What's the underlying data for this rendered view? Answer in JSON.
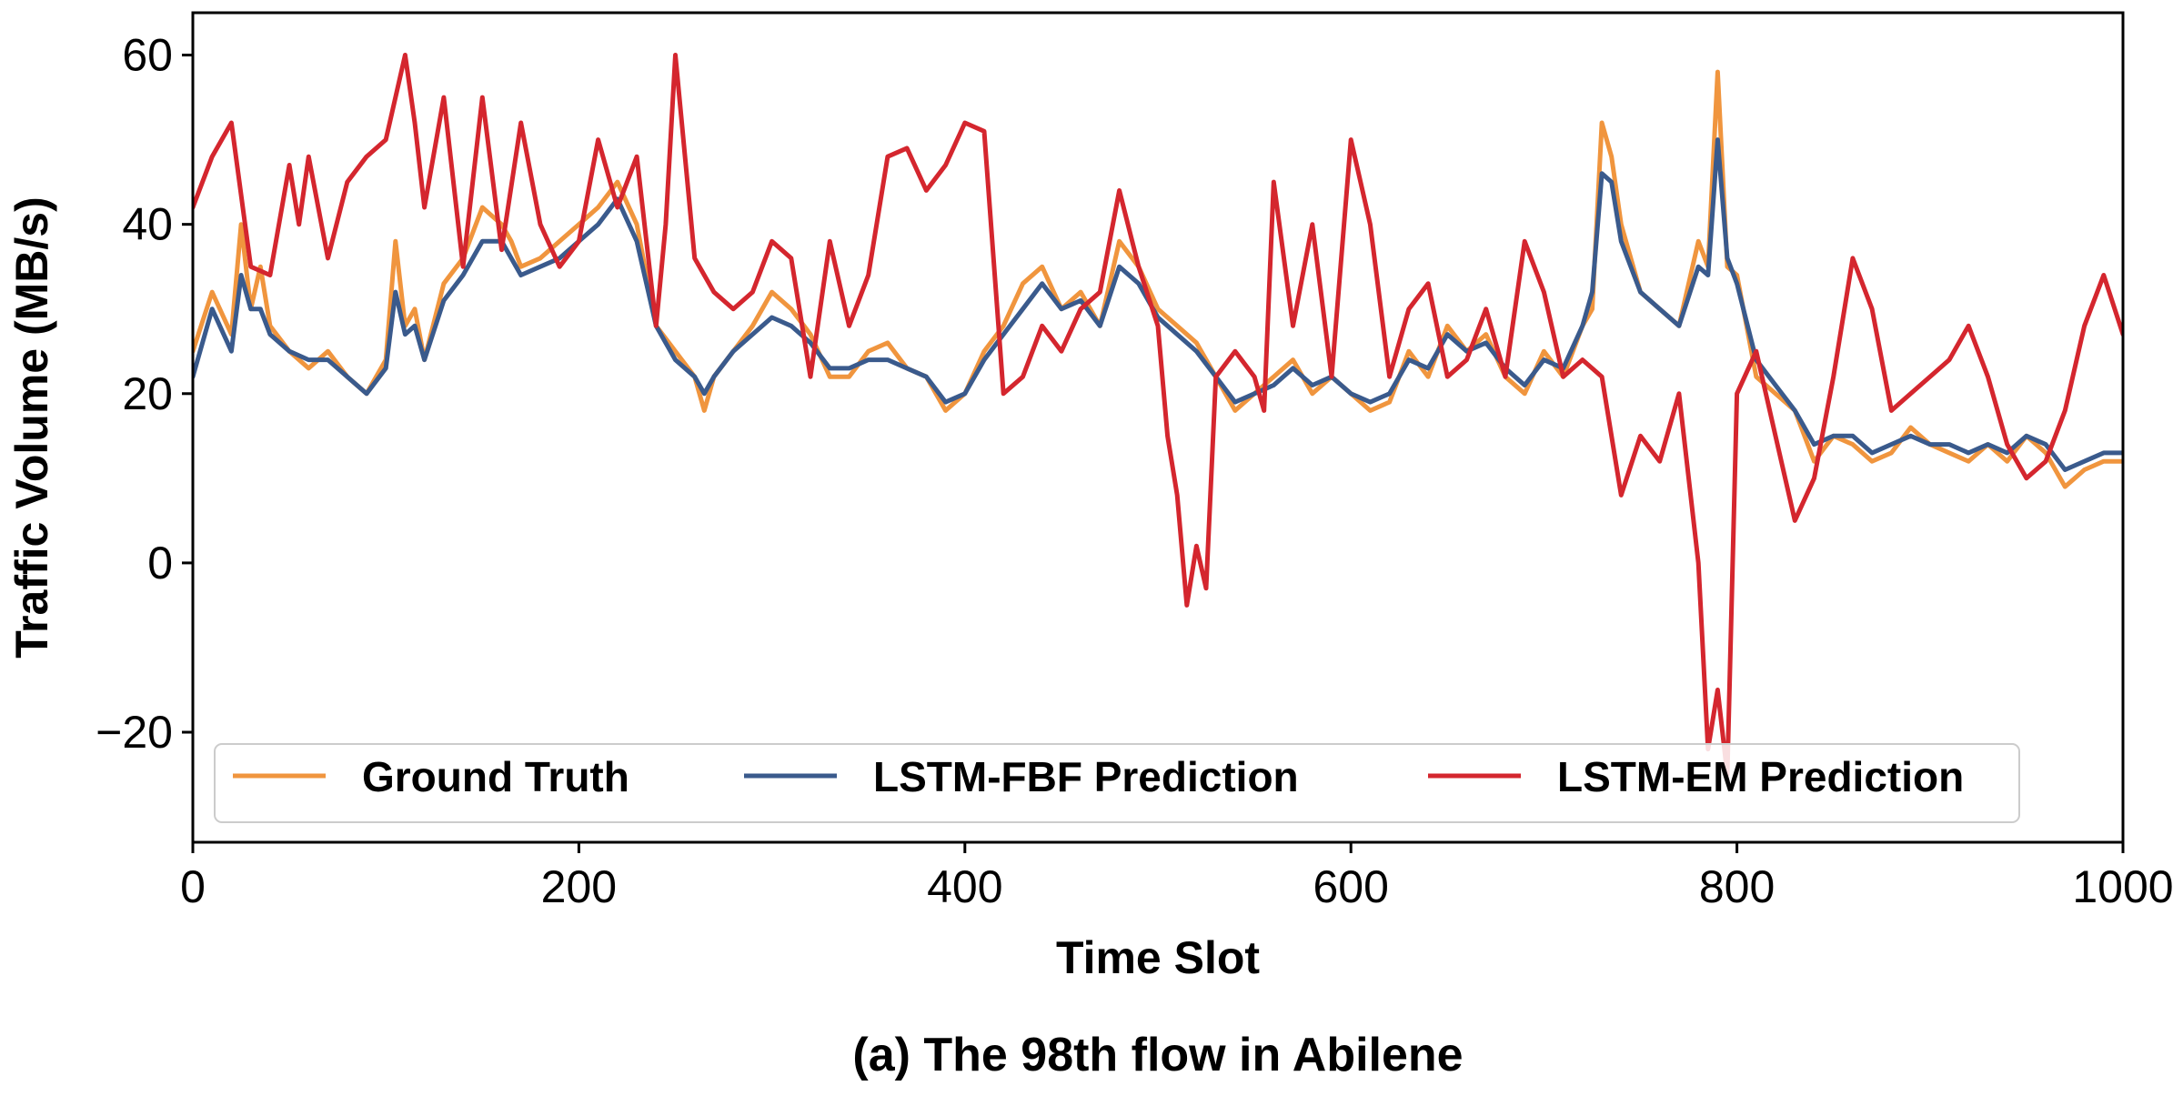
{
  "caption": "(a) The 98th flow in Abilene",
  "chart_data": {
    "type": "line",
    "xlabel": "Time Slot",
    "ylabel": "Traffic Volume (MB/s)",
    "xlim": [
      0,
      1000
    ],
    "ylim": [
      -33,
      65
    ],
    "xticks": [
      0,
      200,
      400,
      600,
      800,
      1000
    ],
    "xtick_labels": [
      "0",
      "200",
      "400",
      "600",
      "800",
      "1000"
    ],
    "yticks": [
      -20,
      0,
      20,
      40,
      60
    ],
    "ytick_labels": [
      "−20",
      "0",
      "20",
      "40",
      "60"
    ],
    "grid": false,
    "legend_placement": "lower-center",
    "legend_columns": 3,
    "series": [
      {
        "name": "Ground Truth",
        "color": "#f0953e",
        "x": [
          0,
          10,
          20,
          25,
          30,
          35,
          40,
          50,
          60,
          70,
          80,
          90,
          100,
          105,
          110,
          115,
          120,
          130,
          140,
          150,
          160,
          165,
          170,
          180,
          190,
          200,
          210,
          220,
          230,
          240,
          250,
          260,
          265,
          270,
          280,
          290,
          300,
          310,
          320,
          330,
          340,
          350,
          360,
          370,
          380,
          390,
          400,
          410,
          420,
          430,
          440,
          450,
          460,
          470,
          480,
          490,
          500,
          510,
          520,
          530,
          540,
          550,
          560,
          570,
          580,
          590,
          600,
          610,
          620,
          630,
          640,
          650,
          660,
          670,
          680,
          690,
          700,
          710,
          720,
          725,
          730,
          735,
          740,
          750,
          760,
          770,
          780,
          785,
          790,
          795,
          800,
          810,
          820,
          830,
          840,
          850,
          860,
          870,
          880,
          890,
          900,
          910,
          920,
          930,
          940,
          950,
          960,
          970,
          980,
          990,
          1000
        ],
        "y": [
          25,
          32,
          27,
          40,
          30,
          35,
          28,
          25,
          23,
          25,
          22,
          20,
          24,
          38,
          28,
          30,
          24,
          33,
          36,
          42,
          40,
          38,
          35,
          36,
          38,
          40,
          42,
          45,
          40,
          28,
          25,
          22,
          18,
          22,
          25,
          28,
          32,
          30,
          27,
          22,
          22,
          25,
          26,
          23,
          22,
          18,
          20,
          25,
          28,
          33,
          35,
          30,
          32,
          28,
          38,
          35,
          30,
          28,
          26,
          22,
          18,
          20,
          22,
          24,
          20,
          22,
          20,
          18,
          19,
          25,
          22,
          28,
          25,
          27,
          22,
          20,
          25,
          22,
          28,
          30,
          52,
          48,
          40,
          32,
          30,
          28,
          38,
          35,
          58,
          35,
          34,
          22,
          20,
          18,
          12,
          15,
          14,
          12,
          13,
          16,
          14,
          13,
          12,
          14,
          12,
          15,
          13,
          9,
          11,
          12,
          12
        ]
      },
      {
        "name": "LSTM-FBF Prediction",
        "color": "#3a5a8c",
        "x": [
          0,
          10,
          20,
          25,
          30,
          35,
          40,
          50,
          60,
          70,
          80,
          90,
          100,
          105,
          110,
          115,
          120,
          130,
          140,
          150,
          160,
          165,
          170,
          180,
          190,
          200,
          210,
          220,
          230,
          240,
          250,
          260,
          265,
          270,
          280,
          290,
          300,
          310,
          320,
          330,
          340,
          350,
          360,
          370,
          380,
          390,
          400,
          410,
          420,
          430,
          440,
          450,
          460,
          470,
          480,
          490,
          500,
          510,
          520,
          530,
          540,
          550,
          560,
          570,
          580,
          590,
          600,
          610,
          620,
          630,
          640,
          650,
          660,
          670,
          680,
          690,
          700,
          710,
          720,
          725,
          730,
          735,
          740,
          750,
          760,
          770,
          780,
          785,
          790,
          795,
          800,
          810,
          820,
          830,
          840,
          850,
          860,
          870,
          880,
          890,
          900,
          910,
          920,
          930,
          940,
          950,
          960,
          970,
          980,
          990,
          1000
        ],
        "y": [
          22,
          30,
          25,
          34,
          30,
          30,
          27,
          25,
          24,
          24,
          22,
          20,
          23,
          32,
          27,
          28,
          24,
          31,
          34,
          38,
          38,
          36,
          34,
          35,
          36,
          38,
          40,
          43,
          38,
          28,
          24,
          22,
          20,
          22,
          25,
          27,
          29,
          28,
          26,
          23,
          23,
          24,
          24,
          23,
          22,
          19,
          20,
          24,
          27,
          30,
          33,
          30,
          31,
          28,
          35,
          33,
          29,
          27,
          25,
          22,
          19,
          20,
          21,
          23,
          21,
          22,
          20,
          19,
          20,
          24,
          23,
          27,
          25,
          26,
          23,
          21,
          24,
          23,
          28,
          32,
          46,
          45,
          38,
          32,
          30,
          28,
          35,
          34,
          50,
          36,
          33,
          24,
          21,
          18,
          14,
          15,
          15,
          13,
          14,
          15,
          14,
          14,
          13,
          14,
          13,
          15,
          14,
          11,
          12,
          13,
          13
        ]
      },
      {
        "name": "LSTM-EM Prediction",
        "color": "#d4262e",
        "x": [
          0,
          10,
          20,
          30,
          40,
          50,
          55,
          60,
          70,
          80,
          90,
          100,
          110,
          115,
          120,
          130,
          140,
          150,
          160,
          170,
          180,
          190,
          200,
          210,
          220,
          230,
          240,
          245,
          250,
          260,
          270,
          280,
          290,
          300,
          310,
          320,
          330,
          340,
          350,
          360,
          370,
          380,
          390,
          400,
          410,
          420,
          430,
          440,
          450,
          460,
          470,
          480,
          490,
          500,
          505,
          510,
          515,
          520,
          525,
          530,
          540,
          550,
          555,
          560,
          570,
          580,
          590,
          600,
          610,
          620,
          630,
          640,
          650,
          660,
          670,
          680,
          690,
          700,
          710,
          720,
          730,
          740,
          750,
          760,
          770,
          780,
          785,
          790,
          795,
          800,
          810,
          820,
          830,
          840,
          850,
          860,
          870,
          880,
          890,
          900,
          910,
          920,
          930,
          940,
          950,
          960,
          970,
          980,
          990,
          1000
        ],
        "y": [
          42,
          48,
          52,
          35,
          34,
          47,
          40,
          48,
          36,
          45,
          48,
          50,
          60,
          52,
          42,
          55,
          35,
          55,
          37,
          52,
          40,
          35,
          38,
          50,
          42,
          48,
          28,
          40,
          60,
          36,
          32,
          30,
          32,
          38,
          36,
          22,
          38,
          28,
          34,
          48,
          49,
          44,
          47,
          52,
          51,
          20,
          22,
          28,
          25,
          30,
          32,
          44,
          35,
          28,
          15,
          8,
          -5,
          2,
          -3,
          22,
          25,
          22,
          18,
          45,
          28,
          40,
          22,
          50,
          40,
          22,
          30,
          33,
          22,
          24,
          30,
          22,
          38,
          32,
          22,
          24,
          22,
          8,
          15,
          12,
          20,
          0,
          -22,
          -15,
          -25,
          20,
          25,
          15,
          5,
          10,
          22,
          36,
          30,
          18,
          20,
          22,
          24,
          28,
          22,
          14,
          10,
          12,
          18,
          28,
          34,
          27
        ]
      }
    ]
  }
}
